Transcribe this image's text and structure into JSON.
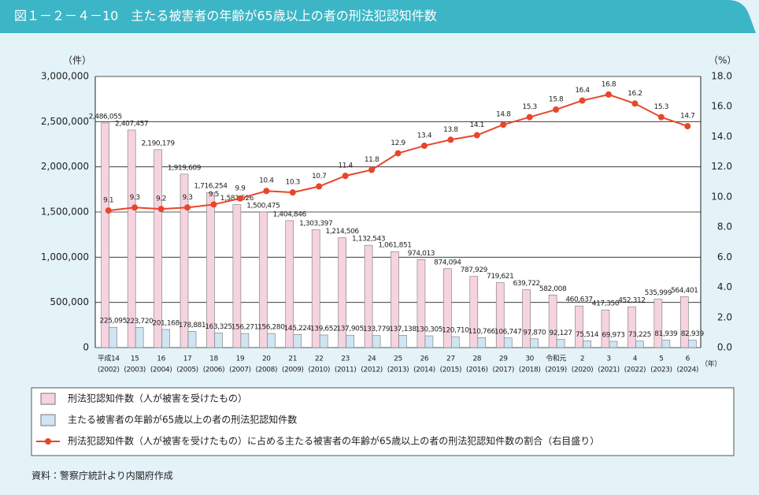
{
  "chart_data": {
    "type": "bar",
    "title": "図１－２－４－10　主たる被害者の年齢が65歳以上の者の刑法犯認知件数",
    "y_unit": "（件）",
    "y2_unit": "（%）",
    "x_unit": "（年）",
    "source": "資料：警察庁統計より内閣府作成",
    "categories": [
      "平成14",
      "15",
      "16",
      "17",
      "18",
      "19",
      "20",
      "21",
      "22",
      "23",
      "24",
      "25",
      "26",
      "27",
      "28",
      "29",
      "30",
      "令和元",
      "2",
      "3",
      "4",
      "5",
      "6"
    ],
    "category_years": [
      "(2002)",
      "(2003)",
      "(2004)",
      "(2005)",
      "(2006)",
      "(2007)",
      "(2008)",
      "(2009)",
      "(2010)",
      "(2011)",
      "(2012)",
      "(2013)",
      "(2014)",
      "(2015)",
      "(2016)",
      "(2017)",
      "(2018)",
      "(2019)",
      "(2020)",
      "(2021)",
      "(2022)",
      "(2023)",
      "(2024)"
    ],
    "ylim": [
      0,
      3000000
    ],
    "yticks": [
      0,
      {
        "value": 500000,
        "label": "500,000"
      },
      {
        "value": 1000000,
        "label": "1,000,000"
      },
      {
        "value": 1500000,
        "label": "1,500,000"
      },
      {
        "value": 2000000,
        "label": "2,000,000"
      },
      {
        "value": 2500000,
        "label": "2,500,000"
      },
      {
        "value": 3000000,
        "label": "3,000,000"
      }
    ],
    "y2lim": [
      0,
      18
    ],
    "y2ticks": [
      {
        "value": 0,
        "label": "0.0"
      },
      {
        "value": 2,
        "label": "2.0"
      },
      {
        "value": 4,
        "label": "4.0"
      },
      {
        "value": 6,
        "label": "6.0"
      },
      {
        "value": 8,
        "label": "8.0"
      },
      {
        "value": 10,
        "label": "10.0"
      },
      {
        "value": 12,
        "label": "12.0"
      },
      {
        "value": 14,
        "label": "14.0"
      },
      {
        "value": 16,
        "label": "16.0"
      },
      {
        "value": 18,
        "label": "18.0"
      }
    ],
    "grid": true,
    "series": [
      {
        "name": "刑法犯認知件数（人が被害を受けたもの）",
        "type": "bar",
        "color": "#f6d3e0",
        "values": [
          2486055,
          2407457,
          2190179,
          1919609,
          1716254,
          1581526,
          1500475,
          1404846,
          1303397,
          1214506,
          1132543,
          1061851,
          974013,
          874094,
          787929,
          719621,
          639722,
          582008,
          460637,
          417350,
          452312,
          535999,
          564401
        ],
        "value_labels": [
          "2,486,055",
          "2,407,457",
          "2,190,179",
          "1,919,609",
          "1,716,254",
          "1,581,526",
          "1,500,475",
          "1,404,846",
          "1,303,397",
          "1,214,506",
          "1,132,543",
          "1,061,851",
          "974,013",
          "874,094",
          "787,929",
          "719,621",
          "639,722",
          "582,008",
          "460,637",
          "417,350",
          "452,312",
          "535,999",
          "564,401"
        ]
      },
      {
        "name": "主たる被害者の年齢が65歳以上の者の刑法犯認知件数",
        "type": "bar",
        "color": "#cfe5f3",
        "values": [
          225095,
          223720,
          201168,
          178881,
          163325,
          156271,
          156280,
          145224,
          139652,
          137905,
          133779,
          137138,
          130305,
          120710,
          110766,
          106747,
          97870,
          92127,
          75514,
          69973,
          73225,
          81939,
          82939
        ],
        "value_labels": [
          "225,095",
          "223,720",
          "201,168",
          "178,881",
          "163,325",
          "156,271",
          "156,280",
          "145,224",
          "139,652",
          "137,905",
          "133,779",
          "137,138",
          "130,305",
          "120,710",
          "110,766",
          "106,747",
          "97,870",
          "92,127",
          "75,514",
          "69,973",
          "73,225",
          "81,939",
          "82,939"
        ]
      },
      {
        "name": "刑法犯認知件数（人が被害を受けたもの）に占める主たる被害者の年齢が65歳以上の者の刑法犯認知件数の割合（右目盛り）",
        "type": "line",
        "axis": "y2",
        "color": "#e8462a",
        "values": [
          9.1,
          9.3,
          9.2,
          9.3,
          9.5,
          9.9,
          10.4,
          10.3,
          10.7,
          11.4,
          11.8,
          12.9,
          13.4,
          13.8,
          14.1,
          14.8,
          15.3,
          15.8,
          16.4,
          16.8,
          16.2,
          15.3,
          14.7
        ]
      }
    ]
  }
}
